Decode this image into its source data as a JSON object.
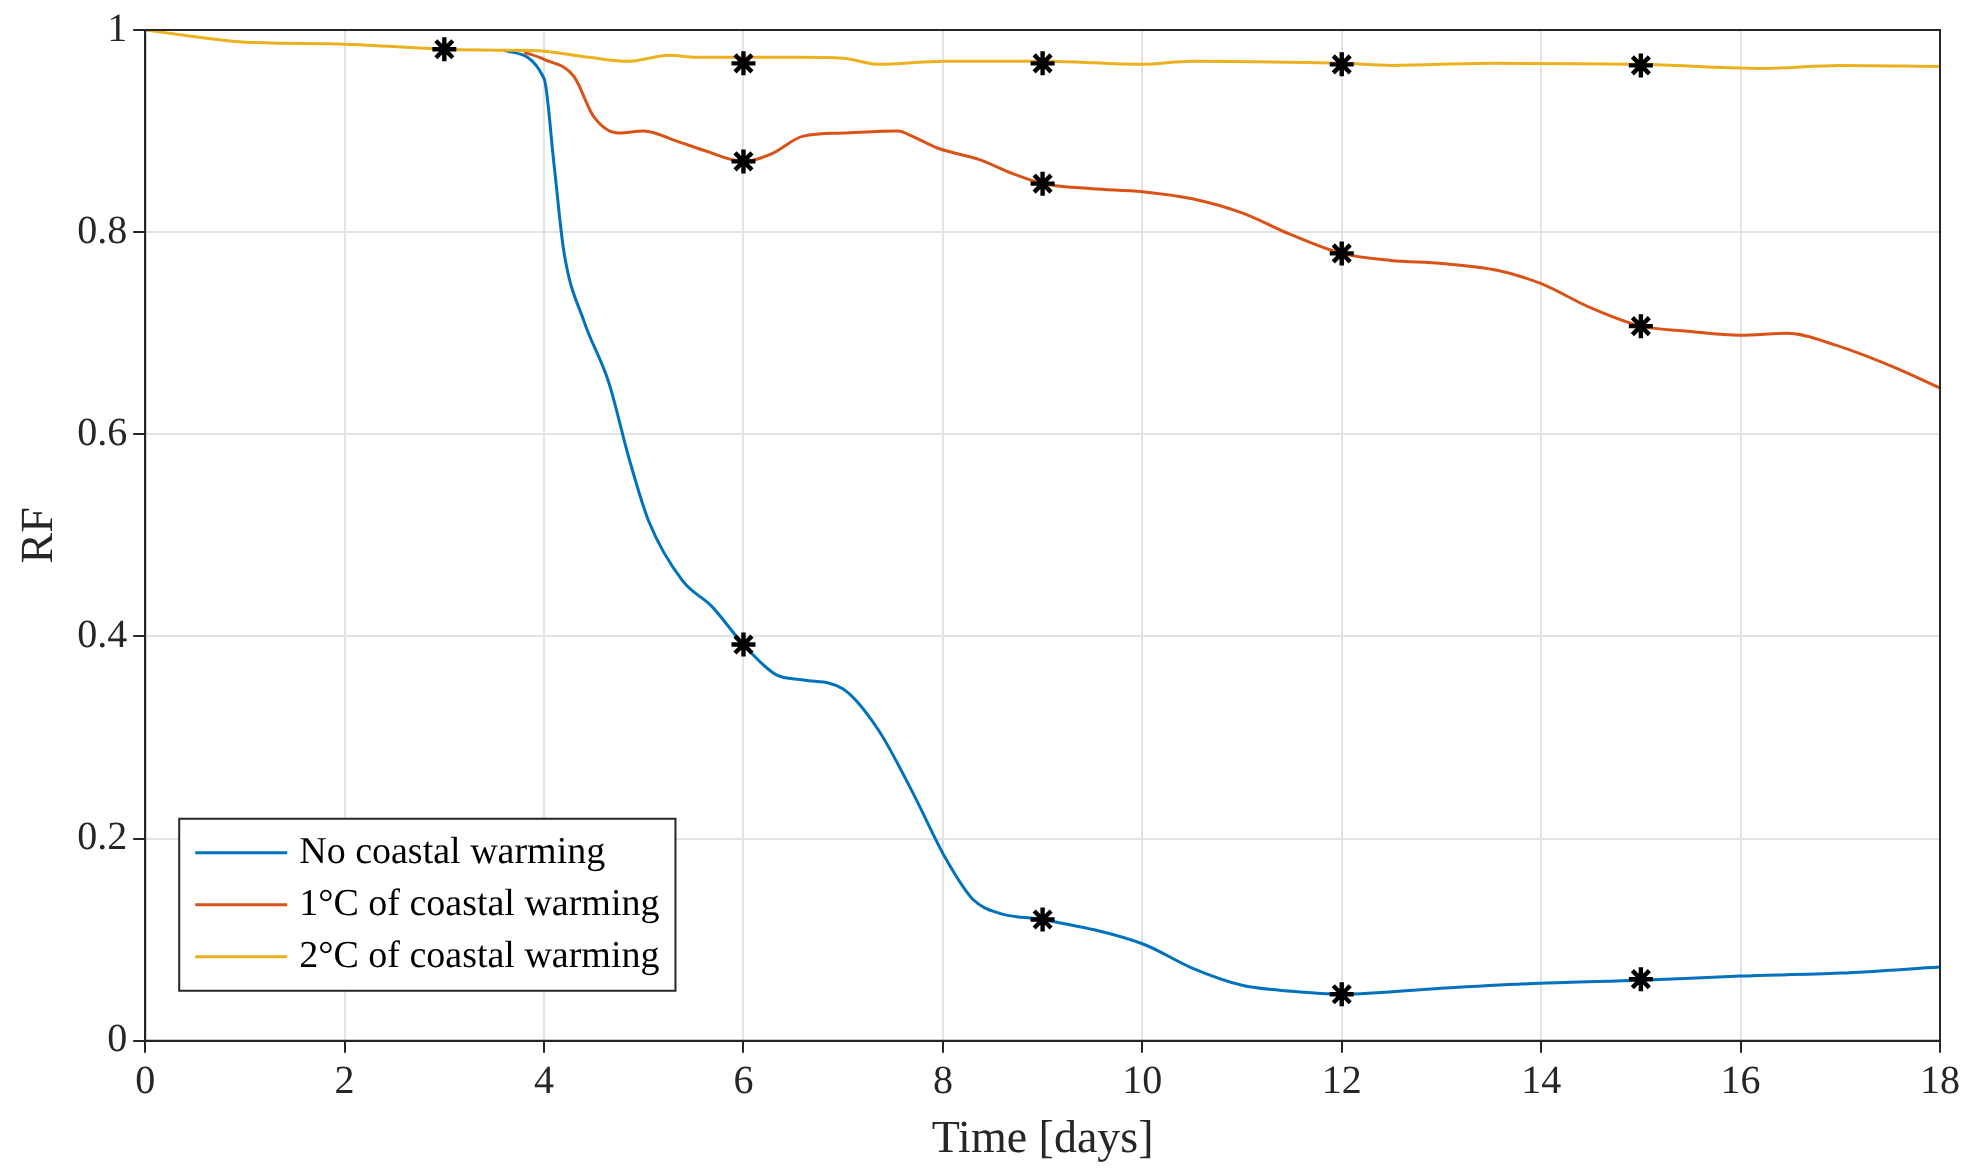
{
  "chart_data": {
    "type": "line",
    "xlabel": "Time [days]",
    "ylabel": "RF",
    "xlim": [
      0,
      18
    ],
    "xticks": [
      0,
      2,
      4,
      6,
      8,
      10,
      12,
      14,
      16,
      18
    ],
    "ylim": [
      0,
      1
    ],
    "yticks": [
      0,
      0.2,
      0.4,
      0.6,
      0.8,
      1
    ],
    "grid": true,
    "legend": "bottom left",
    "line_style": "solid",
    "series": [
      {
        "name": "No coastal warming",
        "color": "#0072bd",
        "marker": "none",
        "x": [
          3.6,
          4,
          4.1,
          4.2,
          4.4,
          4.65,
          4.85,
          5.05,
          5.39,
          5.68,
          6,
          6.33,
          6.6,
          7,
          7.35,
          7.69,
          8.03,
          8.3,
          8.57,
          9,
          10,
          10.5,
          11,
          11.5,
          12,
          13,
          14,
          15,
          16,
          17,
          18
        ],
        "values": [
          0.98,
          0.952,
          0.867,
          0.78,
          0.712,
          0.651,
          0.577,
          0.514,
          0.455,
          0.43,
          0.392,
          0.362,
          0.357,
          0.348,
          0.308,
          0.247,
          0.18,
          0.14,
          0.126,
          0.12,
          0.096,
          0.072,
          0.055,
          0.049,
          0.046,
          0.052,
          0.057,
          0.06,
          0.064,
          0.067,
          0.073
        ]
      },
      {
        "name": "1°C of coastal warming",
        "color": "#d95319",
        "marker": "none",
        "x": [
          3.8,
          4,
          4.3,
          4.5,
          4.75,
          5,
          5.33,
          5.6,
          6,
          6.27,
          6.6,
          7,
          7.55,
          7.69,
          7.95,
          8.36,
          8.7,
          9,
          9.5,
          10,
          10.5,
          11,
          11.48,
          12,
          12.49,
          13,
          13.57,
          14,
          14.5,
          15,
          15.47,
          16,
          16.47,
          16.96,
          17.5,
          18
        ],
        "values": [
          0.978,
          0.971,
          0.954,
          0.914,
          0.898,
          0.9,
          0.89,
          0.881,
          0.87,
          0.877,
          0.895,
          0.898,
          0.9,
          0.895,
          0.883,
          0.872,
          0.858,
          0.848,
          0.843,
          0.84,
          0.833,
          0.819,
          0.798,
          0.779,
          0.772,
          0.769,
          0.762,
          0.749,
          0.725,
          0.707,
          0.702,
          0.698,
          0.7,
          0.688,
          0.668,
          0.646
        ]
      },
      {
        "name": "2°C of coastal warming",
        "color": "#edb120",
        "marker": "none",
        "x": [
          0,
          1,
          2,
          3,
          3.6,
          4,
          4.45,
          4.85,
          5.25,
          5.53,
          6.55,
          7,
          7.35,
          8.03,
          8.7,
          9,
          10,
          10.5,
          12,
          12.5,
          13.5,
          15,
          16.2,
          17,
          18
        ],
        "values": [
          1,
          0.988,
          0.986,
          0.981,
          0.98,
          0.979,
          0.973,
          0.969,
          0.975,
          0.973,
          0.973,
          0.972,
          0.966,
          0.969,
          0.969,
          0.969,
          0.966,
          0.969,
          0.967,
          0.965,
          0.967,
          0.966,
          0.962,
          0.965,
          0.964
        ]
      },
      {
        "type": "scatter",
        "color": "#000000",
        "marker": "cross",
        "x": [
          3,
          6,
          6,
          6,
          9,
          9,
          9,
          12,
          12,
          12,
          15,
          15,
          15
        ],
        "values": [
          0.981,
          0.392,
          0.87,
          0.967,
          0.12,
          0.848,
          0.967,
          0.046,
          0.779,
          0.966,
          0.061,
          0.707,
          0.965
        ]
      }
    ]
  }
}
